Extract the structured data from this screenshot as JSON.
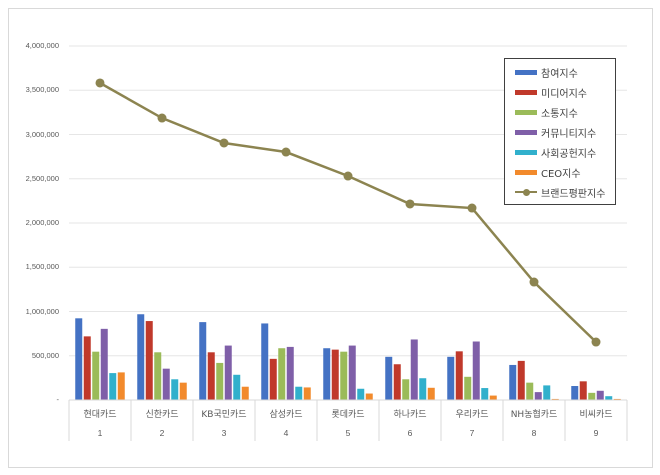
{
  "chart_data": {
    "type": "bar+line",
    "title": "",
    "xlabel": "",
    "ylabel": "",
    "ylim": [
      0,
      4000000
    ],
    "yticks": [
      "-",
      "500,000",
      "1,000,000",
      "1,500,000",
      "2,000,000",
      "2,500,000",
      "3,000,000",
      "3,500,000",
      "4,000,000"
    ],
    "grid": true,
    "legend_position": "top-right (inside plot)",
    "categories": [
      "현대카드",
      "신한카드",
      "KB국민카드",
      "삼성카드",
      "롯데카드",
      "하나카드",
      "우리카드",
      "NH농협카드",
      "비씨카드"
    ],
    "category_numbers": [
      "1",
      "2",
      "3",
      "4",
      "5",
      "6",
      "7",
      "8",
      "9"
    ],
    "series": [
      {
        "name": "참여지수",
        "type": "bar",
        "color": "#4472c4",
        "values": [
          923000,
          969000,
          880000,
          865000,
          585000,
          488000,
          488000,
          396000,
          158000
        ]
      },
      {
        "name": "미디어지수",
        "type": "bar",
        "color": "#c0392b",
        "values": [
          719000,
          892000,
          539000,
          465000,
          569000,
          404000,
          550000,
          442000,
          211000
        ]
      },
      {
        "name": "소통지수",
        "type": "bar",
        "color": "#9bbb59",
        "values": [
          546000,
          539000,
          419000,
          585000,
          546000,
          234000,
          262000,
          196000,
          81000
        ]
      },
      {
        "name": "커뮤니티지수",
        "type": "bar",
        "color": "#7f5fa8",
        "values": [
          804000,
          354000,
          615000,
          600000,
          615000,
          684000,
          661000,
          89000,
          104000
        ]
      },
      {
        "name": "사회공헌지수",
        "type": "bar",
        "color": "#31b0cc",
        "values": [
          304000,
          234000,
          285000,
          150000,
          127000,
          246000,
          135000,
          165000,
          43000
        ]
      },
      {
        "name": "CEO지수",
        "type": "bar",
        "color": "#f28a2c",
        "values": [
          312000,
          196000,
          150000,
          142000,
          73000,
          138000,
          50000,
          12000,
          12000
        ]
      },
      {
        "name": "브랜드평판지수",
        "type": "line",
        "color": "#8c8450",
        "values": [
          3582000,
          3186000,
          2904000,
          2802000,
          2531000,
          2215000,
          2169000,
          1333000,
          655000
        ]
      }
    ]
  },
  "legend": {
    "items": [
      {
        "label": "참여지수",
        "color": "#4472c4",
        "kind": "bar"
      },
      {
        "label": "미디어지수",
        "color": "#c0392b",
        "kind": "bar"
      },
      {
        "label": "소통지수",
        "color": "#9bbb59",
        "kind": "bar"
      },
      {
        "label": "커뮤니티지수",
        "color": "#7f5fa8",
        "kind": "bar"
      },
      {
        "label": "사회공헌지수",
        "color": "#31b0cc",
        "kind": "bar"
      },
      {
        "label": "CEO지수",
        "color": "#f28a2c",
        "kind": "bar"
      },
      {
        "label": "브랜드평판지수",
        "color": "#8c8450",
        "kind": "line"
      }
    ]
  }
}
